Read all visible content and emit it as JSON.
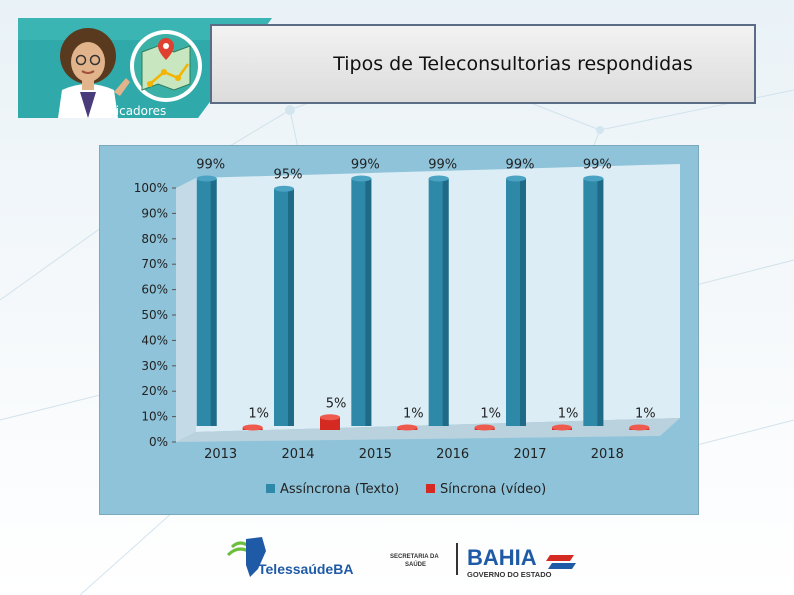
{
  "header": {
    "title": "Tipos de Teleconsultorias respondidas",
    "badge_label": "Indicadores"
  },
  "chart_data": {
    "type": "bar",
    "categories": [
      "2013",
      "2014",
      "2015",
      "2016",
      "2017",
      "2018"
    ],
    "series": [
      {
        "name": "Assíncrona (Texto)",
        "values": [
          99,
          95,
          99,
          99,
          99,
          99
        ],
        "labels": [
          "99%",
          "95%",
          "99%",
          "99%",
          "99%",
          "99%"
        ],
        "color": "#2e88a8"
      },
      {
        "name": "Síncrona (vídeo)",
        "values": [
          1,
          5,
          1,
          1,
          1,
          1
        ],
        "labels": [
          "1%",
          "5%",
          "1%",
          "1%",
          "1%",
          "1%"
        ],
        "color": "#d42a22"
      }
    ],
    "y_ticks": [
      "0%",
      "10%",
      "20%",
      "30%",
      "40%",
      "50%",
      "60%",
      "70%",
      "80%",
      "90%",
      "100%"
    ],
    "ylim": [
      0,
      100
    ],
    "legend_position": "bottom",
    "grid": false
  },
  "footer": {
    "telessaude_logo_text": "TelessaúdeBA",
    "secretaria_line1": "SECRETARIA DA",
    "secretaria_line2": "SAÚDE",
    "bahia_logo_text": "BAHIA",
    "governo_text": "GOVERNO DO ESTADO"
  },
  "colors": {
    "accent_teal": "#2fa9a9",
    "series_blue": "#2e88a8",
    "series_red": "#d42a22",
    "chart_bg": "#8ec3d9"
  }
}
